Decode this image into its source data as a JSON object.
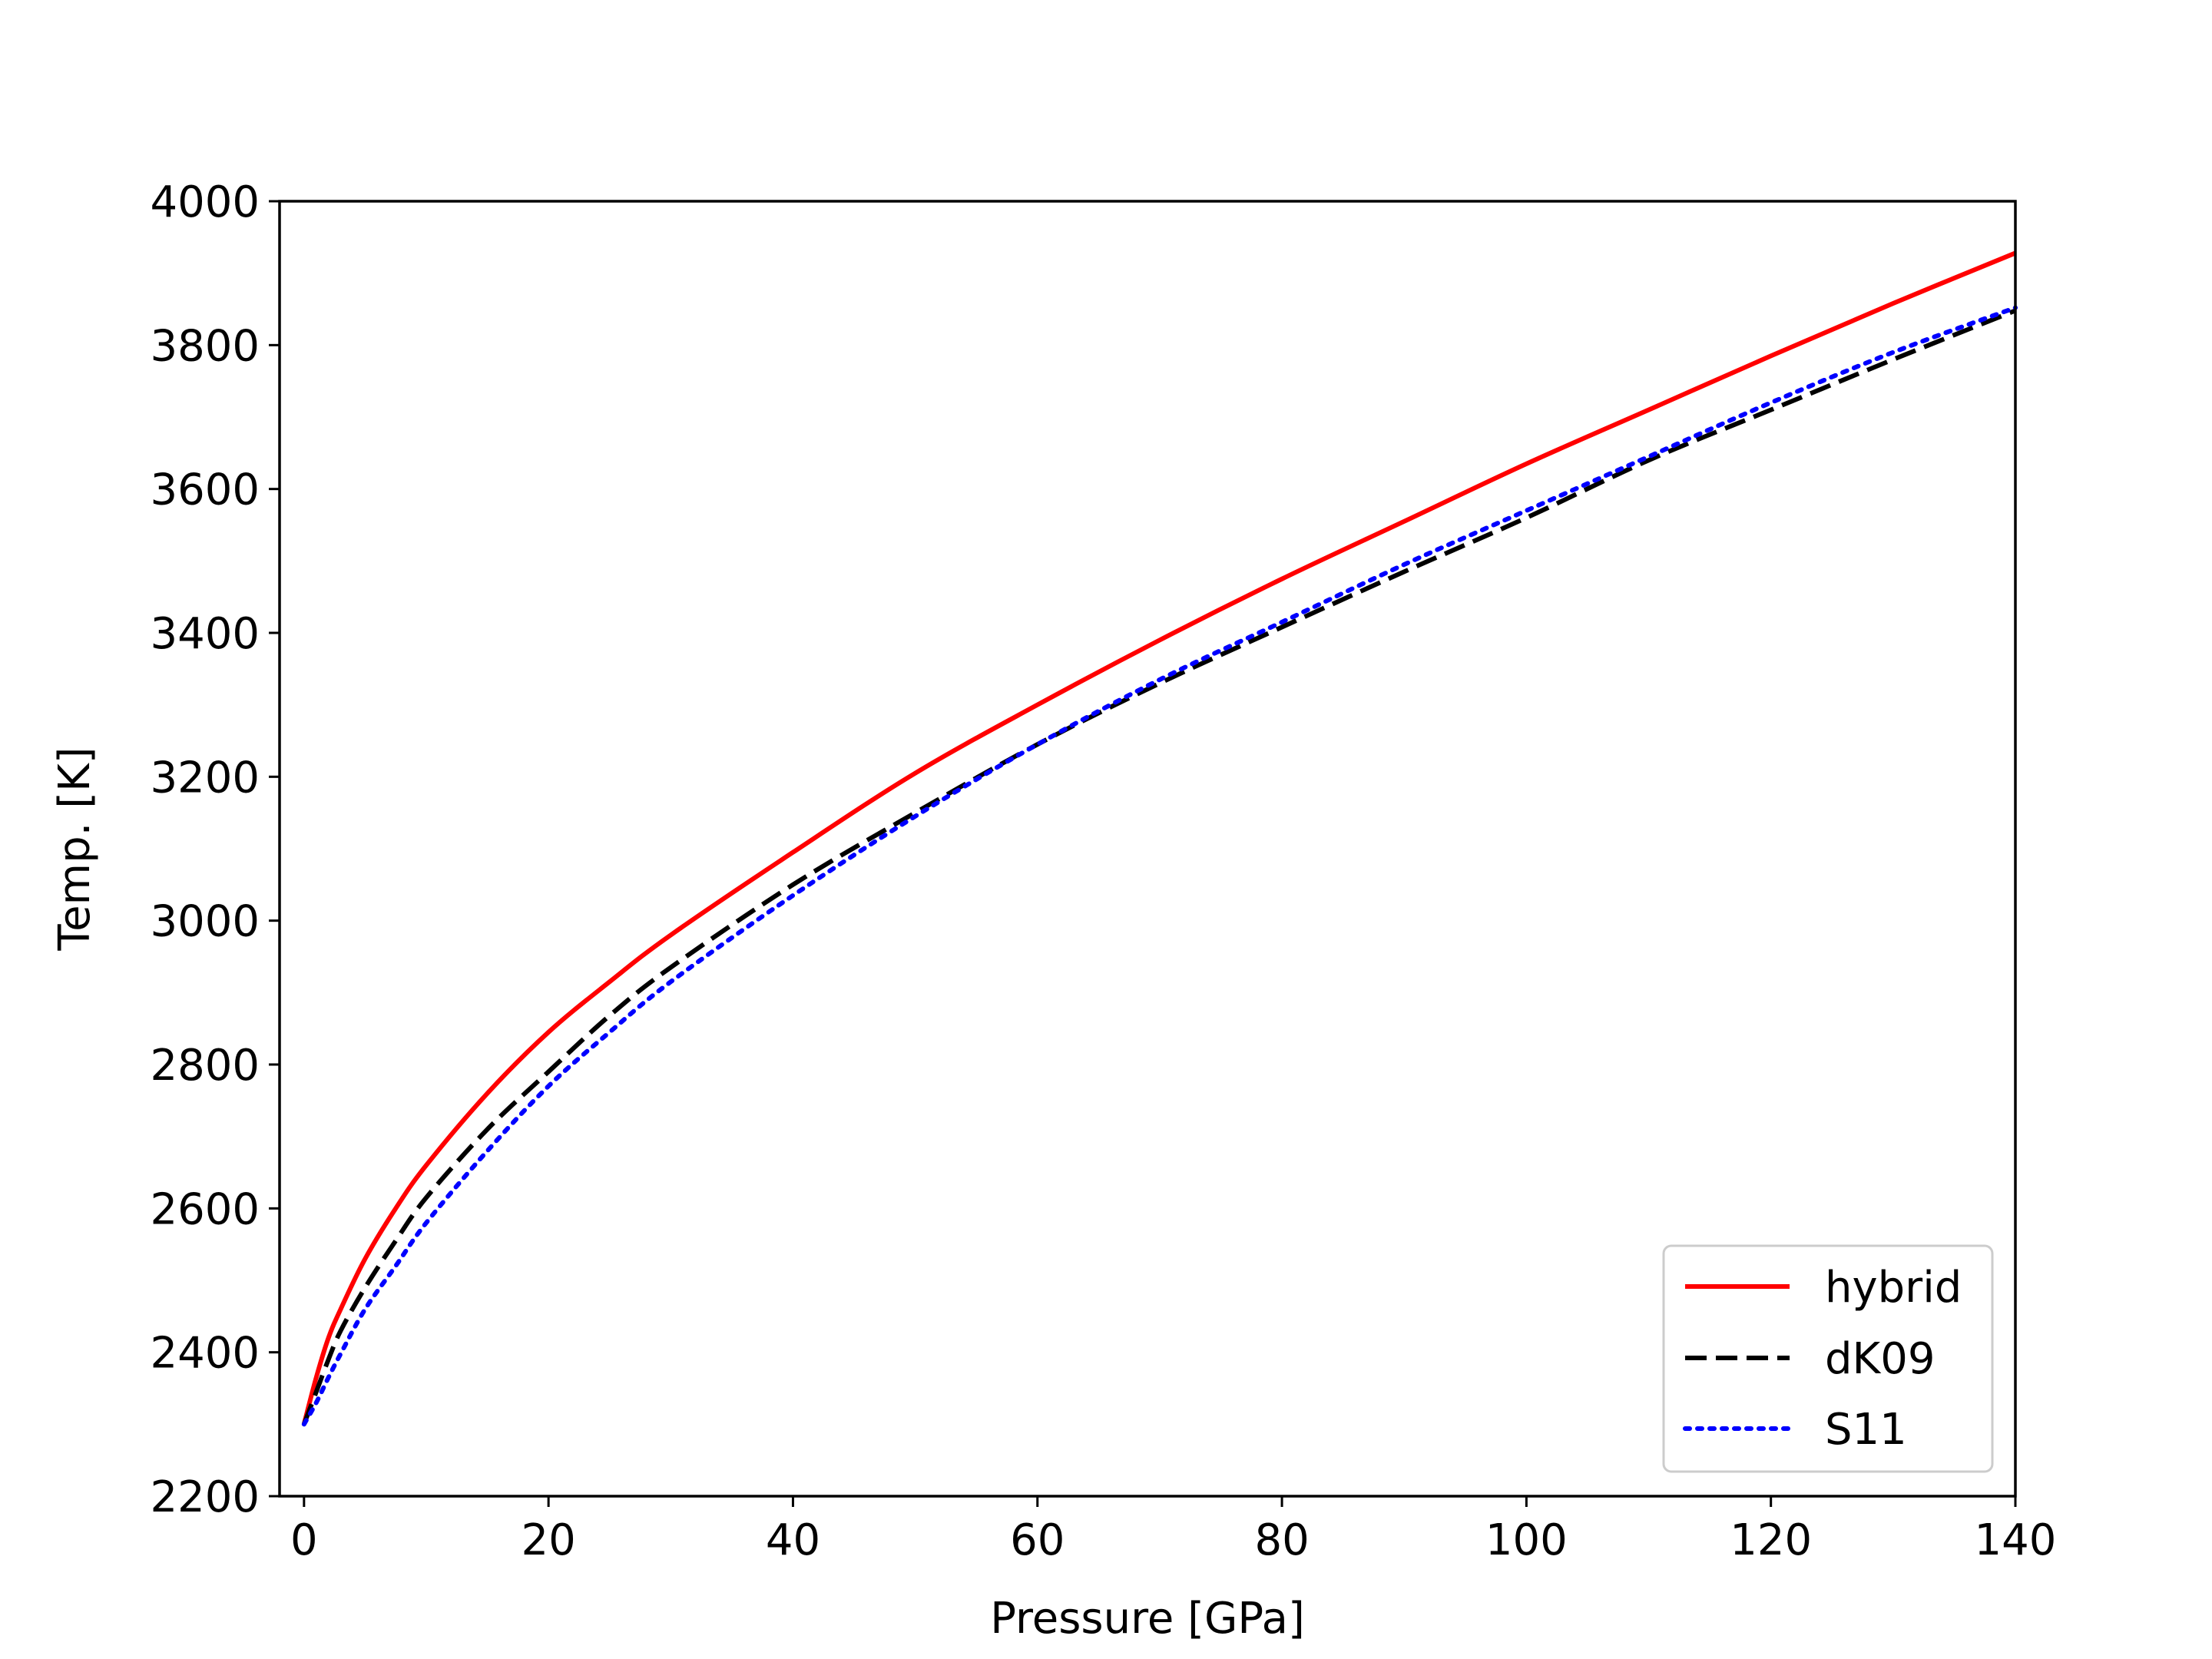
{
  "chart_data": {
    "type": "line",
    "title": "",
    "xlabel": "Pressure [GPa]",
    "ylabel": "Temp. [K]",
    "xlim": [
      -2,
      140
    ],
    "ylim": [
      2200,
      4000
    ],
    "xticks": [
      "0",
      "20",
      "40",
      "60",
      "80",
      "100",
      "120",
      "140"
    ],
    "yticks": [
      "2200",
      "2400",
      "2600",
      "2800",
      "3000",
      "3200",
      "3400",
      "3600",
      "3800",
      "4000"
    ],
    "grid": false,
    "legend_position": "lower-right",
    "x": [
      0,
      1,
      2,
      3,
      5,
      7.5,
      10,
      15,
      20,
      25,
      30,
      40,
      50,
      60,
      70,
      80,
      90,
      100,
      110,
      120,
      130,
      140
    ],
    "series": [
      {
        "name": "hybrid",
        "color": "#ff0000",
        "style": "solid",
        "values": [
          2300,
          2365,
          2420,
          2460,
          2530,
          2600,
          2660,
          2760,
          2845,
          2915,
          2980,
          3095,
          3205,
          3300,
          3390,
          3475,
          3555,
          3635,
          3710,
          3785,
          3858,
          3928
        ]
      },
      {
        "name": "dK09",
        "color": "#000000",
        "style": "dashed",
        "values": [
          2300,
          2345,
          2390,
          2430,
          2490,
          2555,
          2615,
          2710,
          2790,
          2868,
          2935,
          3050,
          3150,
          3245,
          3330,
          3408,
          3485,
          3560,
          3640,
          3710,
          3780,
          3848
        ]
      },
      {
        "name": "S11",
        "color": "#0000ff",
        "style": "dotted",
        "values": [
          2300,
          2330,
          2365,
          2398,
          2460,
          2520,
          2580,
          2680,
          2770,
          2845,
          2915,
          3035,
          3145,
          3245,
          3335,
          3415,
          3495,
          3570,
          3645,
          3720,
          3790,
          3852
        ]
      }
    ]
  }
}
